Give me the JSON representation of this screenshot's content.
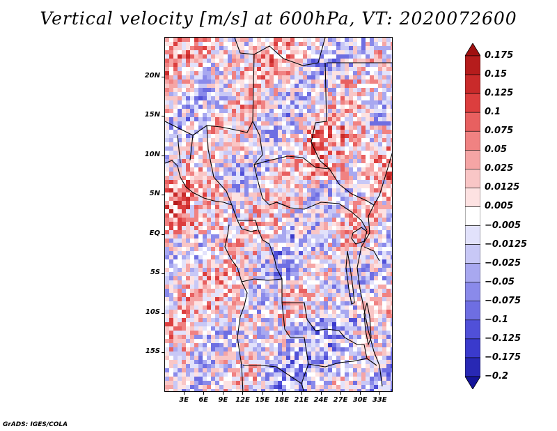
{
  "title": "Vertical velocity [m/s] at 600hPa, VT: 2020072600",
  "credit": "GrADS: IGES/COLA",
  "map": {
    "lon_range": [
      0,
      35
    ],
    "lat_range": [
      -20,
      25
    ],
    "lat_ticks": [
      {
        "lat": 20,
        "label": "20N"
      },
      {
        "lat": 15,
        "label": "15N"
      },
      {
        "lat": 10,
        "label": "10N"
      },
      {
        "lat": 5,
        "label": "5N"
      },
      {
        "lat": 0,
        "label": "EQ"
      },
      {
        "lat": -5,
        "label": "5S"
      },
      {
        "lat": -10,
        "label": "10S"
      },
      {
        "lat": -15,
        "label": "15S"
      }
    ],
    "lon_ticks": [
      {
        "lon": 3,
        "label": "3E"
      },
      {
        "lon": 6,
        "label": "6E"
      },
      {
        "lon": 9,
        "label": "9E"
      },
      {
        "lon": 12,
        "label": "12E"
      },
      {
        "lon": 15,
        "label": "15E"
      },
      {
        "lon": 18,
        "label": "18E"
      },
      {
        "lon": 21,
        "label": "21E"
      },
      {
        "lon": 24,
        "label": "24E"
      },
      {
        "lon": 27,
        "label": "27E"
      },
      {
        "lon": 30,
        "label": "30E"
      },
      {
        "lon": 33,
        "label": "33E"
      }
    ]
  },
  "colorbar": {
    "labels": [
      "0.175",
      "0.15",
      "0.125",
      "0.1",
      "0.075",
      "0.05",
      "0.025",
      "0.0125",
      "0.005",
      "−0.005",
      "−0.0125",
      "−0.025",
      "−0.05",
      "−0.075",
      "−0.1",
      "−0.125",
      "−0.175",
      "−0.2"
    ],
    "colors_top_to_bottom": [
      "#a01010",
      "#b51c1c",
      "#c92a2a",
      "#dc3e3e",
      "#e86060",
      "#f08282",
      "#f5a5a5",
      "#f9c6c6",
      "#fde2e2",
      "#ffffff",
      "#e2e2fb",
      "#c8c8f6",
      "#a8a8f0",
      "#8a8aea",
      "#6e6ee2",
      "#5050d8",
      "#3a3acc",
      "#2828b4",
      "#14149a"
    ]
  }
}
